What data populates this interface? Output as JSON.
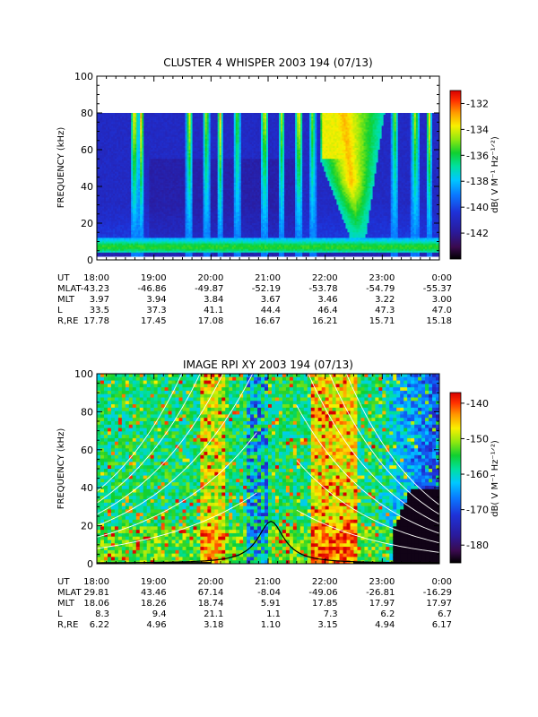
{
  "chart_data": [
    {
      "type": "heatmap",
      "title": "CLUSTER 4 WHISPER 2003 194 (07/13)",
      "ylabel": "FREQUENCY (kHz)",
      "ylim": [
        0,
        100
      ],
      "yticks": [
        "0",
        "20",
        "40",
        "60",
        "80",
        "100"
      ],
      "data_freq_range": [
        2,
        80
      ],
      "colorbar": {
        "label": "dB( V M⁻¹ Hz⁻¹ᐟ²)",
        "range": [
          -144,
          -131
        ],
        "ticks": [
          "-132",
          "-134",
          "-136",
          "-138",
          "-140",
          "-142"
        ]
      },
      "x": [
        "18:00",
        "19:00",
        "20:00",
        "21:00",
        "22:00",
        "23:00",
        "0:00"
      ],
      "ephemeris": [
        {
          "label": "UT",
          "values": [
            "18:00",
            "19:00",
            "20:00",
            "21:00",
            "22:00",
            "23:00",
            "0:00"
          ]
        },
        {
          "label": "MLAT",
          "values": [
            "-43.23",
            "-46.86",
            "-49.87",
            "-52.19",
            "-53.78",
            "-54.79",
            "-55.37"
          ]
        },
        {
          "label": "MLT",
          "values": [
            "3.97",
            "3.94",
            "3.84",
            "3.67",
            "3.46",
            "3.22",
            "3.00"
          ]
        },
        {
          "label": "L",
          "values": [
            "33.5",
            "37.3",
            "41.1",
            "44.4",
            "46.4",
            "47.3",
            "47.0"
          ]
        },
        {
          "label": "R,RE",
          "values": [
            "17.78",
            "17.45",
            "17.08",
            "16.67",
            "16.21",
            "15.71",
            "15.18"
          ]
        }
      ]
    },
    {
      "type": "heatmap",
      "title": "IMAGE RPI XY 2003 194 (07/13)",
      "ylabel": "FREQUENCY (kHz)",
      "ylim": [
        0,
        100
      ],
      "yticks": [
        "0",
        "20",
        "40",
        "60",
        "80",
        "100"
      ],
      "colorbar": {
        "label": "dB( V M⁻¹ Hz⁻¹ᐟ²)",
        "range": [
          -185,
          -137
        ],
        "ticks": [
          "-140",
          "-150",
          "-160",
          "-170",
          "-180"
        ]
      },
      "x": [
        "18:00",
        "19:00",
        "20:00",
        "21:00",
        "22:00",
        "23:00",
        "0:00"
      ],
      "ephemeris": [
        {
          "label": "UT",
          "values": [
            "18:00",
            "19:00",
            "20:00",
            "21:00",
            "22:00",
            "23:00",
            "0:00"
          ]
        },
        {
          "label": "MLAT",
          "values": [
            "29.81",
            "43.46",
            "67.14",
            "-8.04",
            "-49.06",
            "-26.81",
            "-16.29"
          ]
        },
        {
          "label": "MLT",
          "values": [
            "18.06",
            "18.26",
            "18.74",
            "5.91",
            "17.85",
            "17.97",
            "17.97"
          ]
        },
        {
          "label": "L",
          "values": [
            "8.3",
            "9.4",
            "21.1",
            "1.1",
            "7.3",
            "6.2",
            "6.7"
          ]
        },
        {
          "label": "R,RE",
          "values": [
            "6.22",
            "4.96",
            "3.18",
            "1.10",
            "3.15",
            "4.94",
            "6.17"
          ]
        }
      ]
    }
  ]
}
